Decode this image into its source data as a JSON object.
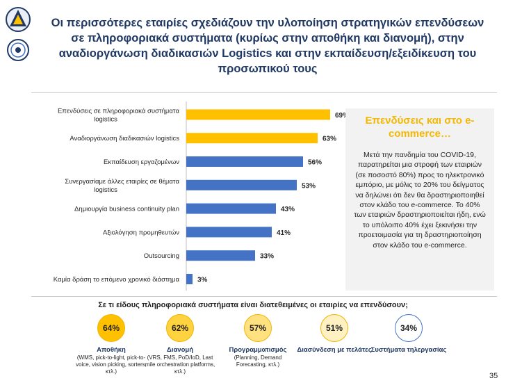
{
  "title_lines": [
    "Οι περισσότερες εταιρίες σχεδιάζουν την υλοποίηση στρατηγικών επενδύσεων",
    "σε πληροφοριακά συστήματα (κυρίως στην αποθήκη και διανομή), στην",
    "αναδιοργάνωση διαδικασιών Logistics και στην εκπαίδευση/εξειδίκευση του",
    "προσωπικού τους"
  ],
  "colors": {
    "highlight": "#ffc000",
    "bar": "#4472c4",
    "title": "#1f3864",
    "side_title": "#f5b800"
  },
  "chart_data": {
    "type": "bar",
    "orientation": "horizontal",
    "categories": [
      [
        "Επενδύσεις σε πληροφοριακά συστήματα",
        "logistics"
      ],
      [
        "Αναδιοργάνωση διαδικασιών logistics"
      ],
      [
        "Εκπαίδευση εργαζομένων"
      ],
      [
        "Συνεργασίαμε άλλες εταιρίες σε θέματα",
        "logistics"
      ],
      [
        "Δημιουργία business continuity plan"
      ],
      [
        "Αξιολόγηση προμηθευτών"
      ],
      [
        "Outsourcing"
      ],
      [
        "Καμία δράση το επόμενο χρονικό διάστημα"
      ]
    ],
    "values": [
      69,
      63,
      56,
      53,
      43,
      41,
      33,
      3
    ],
    "data_labels": [
      "69%",
      "63%",
      "56%",
      "53%",
      "43%",
      "41%",
      "33%",
      "3%"
    ],
    "highlighted": [
      true,
      true,
      false,
      false,
      false,
      false,
      false,
      false
    ],
    "xlim": [
      0,
      100
    ],
    "grid": false
  },
  "side_box": {
    "title": "Επενδύσεις και στο e-commerce…",
    "text": "Μετά την πανδημία του COVID-19, παρατηρείται μια στροφή των εταιριών (σε ποσοστό 80%) προς το ηλεκτρονικό εμπόριο, με μόλις το 20% του δείγματος να δηλώνει ότι δεν θα δραστηριοποιηθεί στον κλάδο του e-commerce. Το 40% των εταιριών δραστηριοποιείται ήδη, ενώ το υπόλοιπο 40% έχει ξεκινήσει την προετοιμασία για τη δραστηριοποίηση στον κλάδο του e-commerce."
  },
  "question": "Σε τι είδους πληροφοριακά συστήματα είναι διατεθειμένες οι εταιρίες να επενδύσουν;",
  "systems": [
    {
      "value": "64%",
      "fill": 0.64,
      "name": "Αποθήκη",
      "desc": "(WMS, pick-to-light, pick-to-voice, vision picking, sorters, κτλ.)",
      "circle_color": "#ffc000"
    },
    {
      "value": "62%",
      "fill": 0.62,
      "name": "Διανομή",
      "desc": "(VRS, FMS, PoD/IoD, Last mile orchestration platforms, κτλ.)",
      "circle_color": "#ffd23f"
    },
    {
      "value": "57%",
      "fill": 0.57,
      "name": "Προγραμματισμός",
      "desc": "(Planning, Demand Forecasting, κτλ.)",
      "circle_color": "#ffe180"
    },
    {
      "value": "51%",
      "fill": 0.51,
      "name": "Διασύνδεση με πελάτες",
      "desc": "",
      "circle_color": "#fff1c2"
    },
    {
      "value": "34%",
      "fill": 0.34,
      "name": "Συστήματα τηλεργασίας",
      "desc": "",
      "circle_color": "#ffffff"
    }
  ],
  "page_number": "35"
}
